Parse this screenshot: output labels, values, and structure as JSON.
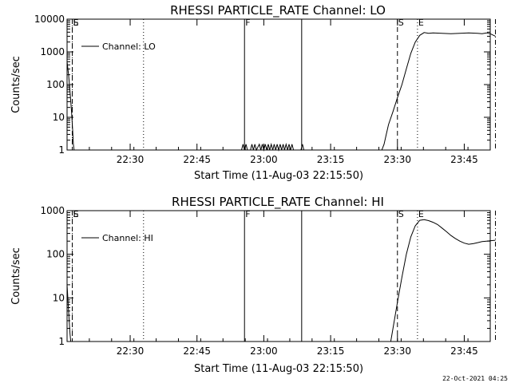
{
  "footer_timestamp": "22-Oct-2021 04:25",
  "chart_data": [
    {
      "type": "line",
      "title": "RHESSI PARTICLE_RATE Channel: LO",
      "xlabel": "Start Time (11-Aug-03 22:15:50)",
      "ylabel": "Counts/sec",
      "yscale": "log",
      "ylim": [
        1,
        10000
      ],
      "xlim_minutes_after_start": [
        0,
        95
      ],
      "x_ticks": [
        "22:30",
        "22:45",
        "23:00",
        "23:15",
        "23:30",
        "23:45"
      ],
      "y_ticks": [
        "1",
        "10",
        "100",
        "1000",
        "10000"
      ],
      "legend": {
        "label": "Channel: LO",
        "position": "top-left"
      },
      "grid": false,
      "markers": [
        {
          "time": "22:17:00",
          "style": "dashed",
          "label": "S"
        },
        {
          "time": "22:17:00",
          "style": "dotted",
          "label": "E"
        },
        {
          "time": "22:33:00",
          "style": "dotted",
          "label": ""
        },
        {
          "time": "22:55:40",
          "style": "solid",
          "label": "F"
        },
        {
          "time": "23:08:30",
          "style": "solid",
          "label": ""
        },
        {
          "time": "23:30:00",
          "style": "dashed",
          "label": "S"
        },
        {
          "time": "23:34:30",
          "style": "dotted",
          "label": "E"
        },
        {
          "time": "23:52:00",
          "style": "dash-dot",
          "label": ""
        }
      ],
      "series": [
        {
          "name": "Channel: LO",
          "points": [
            [
              "22:15:50",
              500
            ],
            [
              "22:16:10",
              200
            ],
            [
              "22:16:30",
              60
            ],
            [
              "22:16:50",
              15
            ],
            [
              "22:17:05",
              4
            ],
            [
              "22:17:15",
              1.5
            ],
            [
              "22:17:25",
              1
            ],
            [
              "22:55:00",
              1
            ],
            [
              "22:55:20",
              1.5
            ],
            [
              "22:55:40",
              1
            ],
            [
              "22:56:00",
              1.5
            ],
            [
              "22:56:20",
              1
            ],
            [
              "22:57:00",
              1
            ],
            [
              "22:57:20",
              1.5
            ],
            [
              "22:57:40",
              1
            ],
            [
              "22:58:00",
              1.5
            ],
            [
              "22:58:20",
              1
            ],
            [
              "22:59:00",
              1.5
            ],
            [
              "22:59:20",
              1
            ],
            [
              "22:59:40",
              1.5
            ],
            [
              "23:00:00",
              1
            ],
            [
              "23:00:20",
              1.5
            ],
            [
              "23:00:40",
              1
            ],
            [
              "23:01:00",
              1.5
            ],
            [
              "23:01:20",
              1
            ],
            [
              "23:01:40",
              1.5
            ],
            [
              "23:02:00",
              1
            ],
            [
              "23:02:20",
              1.5
            ],
            [
              "23:02:40",
              1
            ],
            [
              "23:03:00",
              1.5
            ],
            [
              "23:03:20",
              1
            ],
            [
              "23:03:40",
              1.5
            ],
            [
              "23:04:00",
              1
            ],
            [
              "23:04:20",
              1.5
            ],
            [
              "23:04:40",
              1
            ],
            [
              "23:05:00",
              1.5
            ],
            [
              "23:05:20",
              1
            ],
            [
              "23:05:40",
              1.5
            ],
            [
              "23:06:00",
              1
            ],
            [
              "23:06:20",
              1.5
            ],
            [
              "23:06:40",
              1
            ],
            [
              "23:08:20",
              1
            ],
            [
              "23:08:40",
              1.5
            ],
            [
              "23:09:00",
              1
            ],
            [
              "23:26:30",
              1
            ],
            [
              "23:27:00",
              1.5
            ],
            [
              "23:27:30",
              3
            ],
            [
              "23:28:00",
              6
            ],
            [
              "23:29:00",
              15
            ],
            [
              "23:30:00",
              40
            ],
            [
              "23:31:00",
              100
            ],
            [
              "23:32:00",
              300
            ],
            [
              "23:33:00",
              900
            ],
            [
              "23:34:00",
              2000
            ],
            [
              "23:35:00",
              3200
            ],
            [
              "23:36:00",
              3900
            ],
            [
              "23:37:00",
              3700
            ],
            [
              "23:38:00",
              3800
            ],
            [
              "23:40:00",
              3700
            ],
            [
              "23:42:00",
              3600
            ],
            [
              "23:44:00",
              3700
            ],
            [
              "23:46:00",
              3800
            ],
            [
              "23:48:00",
              3700
            ],
            [
              "23:49:00",
              3600
            ],
            [
              "23:50:00",
              3800
            ],
            [
              "23:51:00",
              3500
            ],
            [
              "23:52:00",
              3000
            ]
          ]
        }
      ]
    },
    {
      "type": "line",
      "title": "RHESSI PARTICLE_RATE Channel: HI",
      "xlabel": "Start Time (11-Aug-03 22:15:50)",
      "ylabel": "Counts/sec",
      "yscale": "log",
      "ylim": [
        1,
        1000
      ],
      "xlim_minutes_after_start": [
        0,
        95
      ],
      "x_ticks": [
        "22:30",
        "22:45",
        "23:00",
        "23:15",
        "23:30",
        "23:45"
      ],
      "y_ticks": [
        "1",
        "10",
        "100",
        "1000"
      ],
      "legend": {
        "label": "Channel: HI",
        "position": "top-left"
      },
      "grid": false,
      "markers": [
        {
          "time": "22:17:00",
          "style": "dashed",
          "label": "S"
        },
        {
          "time": "22:17:00",
          "style": "dotted",
          "label": "E"
        },
        {
          "time": "22:33:00",
          "style": "dotted",
          "label": ""
        },
        {
          "time": "22:55:40",
          "style": "solid",
          "label": "F"
        },
        {
          "time": "23:08:30",
          "style": "solid",
          "label": ""
        },
        {
          "time": "23:30:00",
          "style": "dashed",
          "label": "S"
        },
        {
          "time": "23:34:30",
          "style": "dotted",
          "label": "E"
        },
        {
          "time": "23:52:00",
          "style": "dash-dot",
          "label": ""
        }
      ],
      "series": [
        {
          "name": "Channel: HI",
          "points": [
            [
              "22:15:50",
              20
            ],
            [
              "22:16:10",
              5
            ],
            [
              "22:16:30",
              1.5
            ],
            [
              "22:16:40",
              1
            ],
            [
              "23:28:30",
              1
            ],
            [
              "23:29:00",
              2
            ],
            [
              "23:30:00",
              8
            ],
            [
              "23:31:00",
              30
            ],
            [
              "23:32:00",
              100
            ],
            [
              "23:33:00",
              250
            ],
            [
              "23:34:00",
              450
            ],
            [
              "23:35:00",
              600
            ],
            [
              "23:36:00",
              620
            ],
            [
              "23:37:00",
              590
            ],
            [
              "23:38:00",
              540
            ],
            [
              "23:39:00",
              480
            ],
            [
              "23:40:00",
              400
            ],
            [
              "23:41:00",
              330
            ],
            [
              "23:42:00",
              270
            ],
            [
              "23:43:00",
              230
            ],
            [
              "23:44:00",
              200
            ],
            [
              "23:45:00",
              180
            ],
            [
              "23:46:00",
              170
            ],
            [
              "23:47:00",
              175
            ],
            [
              "23:48:00",
              185
            ],
            [
              "23:49:00",
              195
            ],
            [
              "23:50:00",
              200
            ],
            [
              "23:51:00",
              205
            ],
            [
              "23:52:00",
              210
            ]
          ]
        }
      ]
    }
  ]
}
